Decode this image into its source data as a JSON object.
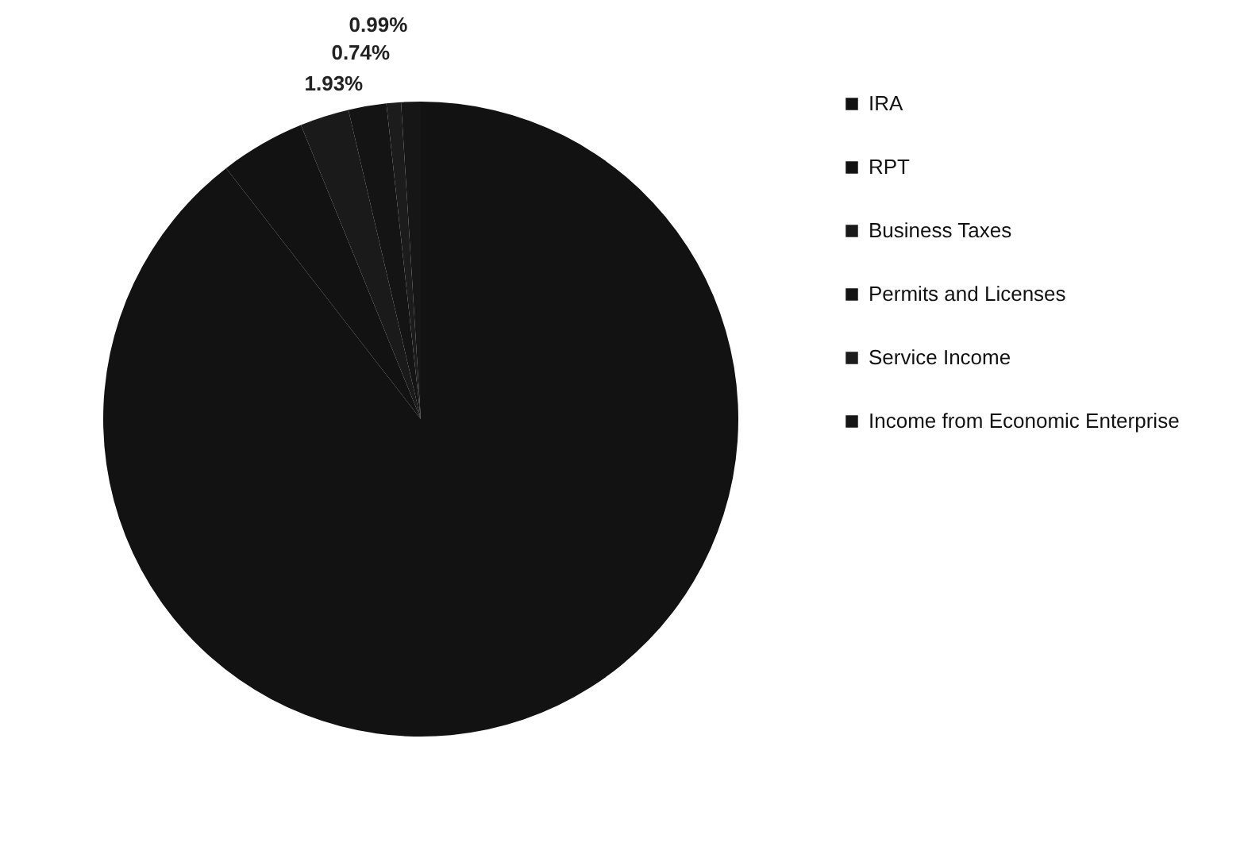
{
  "chart_data": {
    "type": "pie",
    "categories": [
      "IRA",
      "RPT",
      "Business Taxes",
      "Permits and Licenses",
      "Service Income",
      "Income from Economic Enterprise"
    ],
    "values": [
      89.5,
      4.34,
      2.5,
      1.93,
      0.74,
      0.99
    ],
    "value_labels": [
      null,
      null,
      null,
      "1.93%",
      "0.74%",
      "0.99%"
    ],
    "colors": [
      "#121212",
      "#121212",
      "#1a1a1a",
      "#141414",
      "#1c1c1c",
      "#161616"
    ],
    "legend": "right"
  }
}
